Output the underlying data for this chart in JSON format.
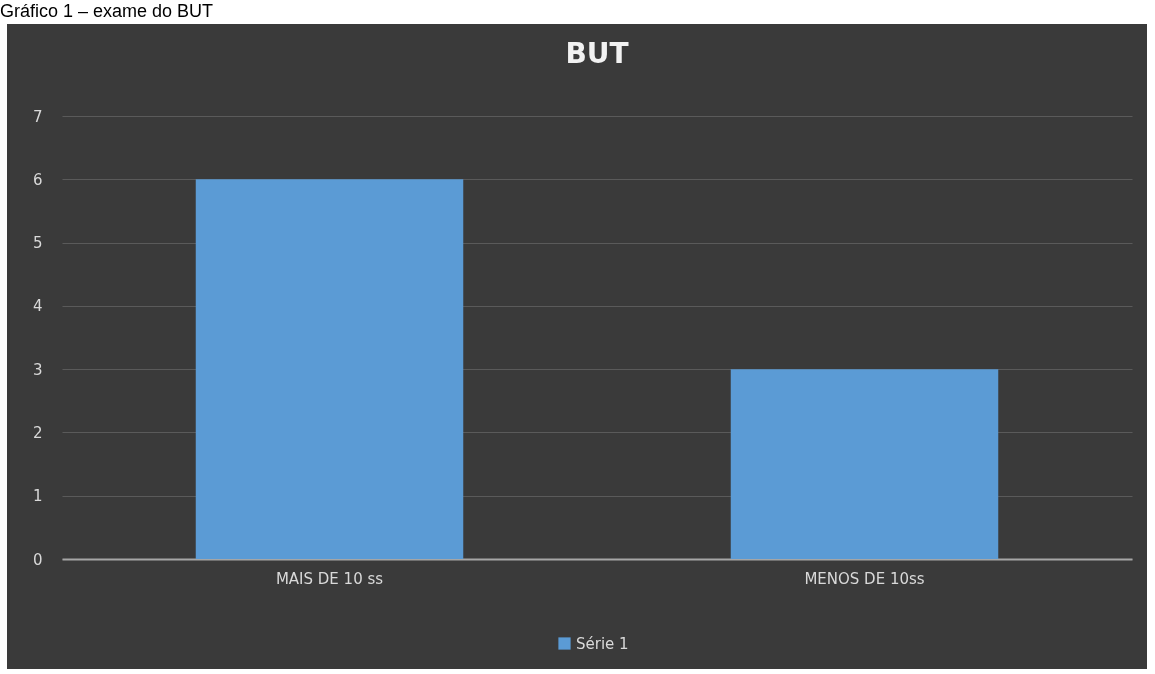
{
  "chart_data": {
    "type": "bar",
    "title": "BUT",
    "annotations": [
      "Gráfico 1 – exame do BUT"
    ],
    "categories": [
      "MAIS DE 10 ss",
      "MENOS DE 10ss"
    ],
    "series": [
      {
        "name": "Série 1",
        "color": "#5b9bd5",
        "values": [
          6,
          3
        ]
      }
    ],
    "ylim": [
      0,
      7
    ],
    "yticks": [
      0,
      1,
      2,
      3,
      4,
      5,
      6,
      7
    ],
    "grid": "y",
    "legend": "bottom"
  }
}
